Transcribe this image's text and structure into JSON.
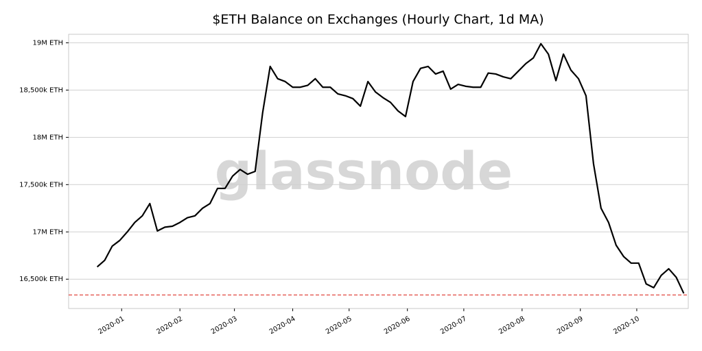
{
  "chart_data": {
    "type": "line",
    "title": "$ETH Balance on Exchanges (Hourly Chart, 1d MA)",
    "watermark": "glassnode",
    "series": [
      {
        "color": "#000000",
        "values": [
          16630000,
          16700000,
          16850000,
          16910000,
          17000000,
          17100000,
          17170000,
          17300000,
          17010000,
          17050000,
          17060000,
          17100000,
          17150000,
          17170000,
          17250000,
          17300000,
          17460000,
          17460000,
          17590000,
          17660000,
          17610000,
          17640000,
          18260000,
          18750000,
          18620000,
          18590000,
          18530000,
          18530000,
          18550000,
          18620000,
          18530000,
          18530000,
          18460000,
          18440000,
          18410000,
          18330000,
          18590000,
          18480000,
          18420000,
          18370000,
          18280000,
          18220000,
          18590000,
          18730000,
          18750000,
          18670000,
          18700000,
          18510000,
          18560000,
          18540000,
          18530000,
          18530000,
          18680000,
          18670000,
          18640000,
          18620000,
          18700000,
          18780000,
          18840000,
          18990000,
          18880000,
          18600000,
          18880000,
          18710000,
          18620000,
          18440000,
          17720000,
          17250000,
          17100000,
          16860000,
          16740000,
          16670000,
          16670000,
          16450000,
          16410000,
          16540000,
          16610000,
          16520000,
          16350000
        ]
      }
    ],
    "threshold": {
      "value": 16333000,
      "color": "#e0453f"
    },
    "xlim": [
      -3.8,
      78.6
    ],
    "xticks": [
      {
        "value": 3.25,
        "label": "2020-01"
      },
      {
        "value": 11,
        "label": "2020-02"
      },
      {
        "value": 18.25,
        "label": "2020-03"
      },
      {
        "value": 26,
        "label": "2020-04"
      },
      {
        "value": 33.5,
        "label": "2020-05"
      },
      {
        "value": 41.25,
        "label": "2020-06"
      },
      {
        "value": 48.75,
        "label": "2020-07"
      },
      {
        "value": 56.5,
        "label": "2020-08"
      },
      {
        "value": 64.25,
        "label": "2020-09"
      },
      {
        "value": 71.75,
        "label": "2020-10"
      }
    ],
    "ylim": [
      16190000,
      19090000
    ],
    "yticks": [
      {
        "value": 16500000,
        "label": "16,500k ETH"
      },
      {
        "value": 17000000,
        "label": "17M ETH"
      },
      {
        "value": 17500000,
        "label": "17,500k ETH"
      },
      {
        "value": 18000000,
        "label": "18M ETH"
      },
      {
        "value": 18500000,
        "label": "18,500k ETH"
      },
      {
        "value": 19000000,
        "label": "19M ETH"
      }
    ],
    "grid": true
  }
}
